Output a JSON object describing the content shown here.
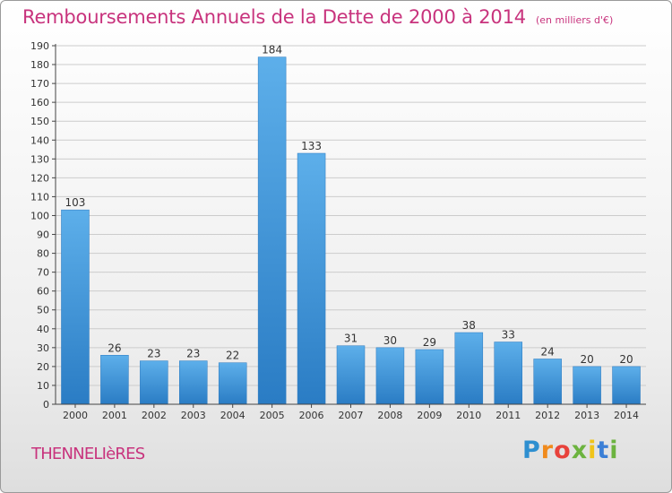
{
  "chart_data": {
    "type": "bar",
    "title": "Remboursements Annuels de la Dette de 2000 à 2014",
    "subtitle": "(en milliers d'€)",
    "categories": [
      "2000",
      "2001",
      "2002",
      "2003",
      "2004",
      "2005",
      "2006",
      "2007",
      "2008",
      "2009",
      "2010",
      "2011",
      "2012",
      "2013",
      "2014"
    ],
    "values": [
      103,
      26,
      23,
      23,
      22,
      184,
      133,
      31,
      30,
      29,
      38,
      33,
      24,
      20,
      20
    ],
    "ylim": [
      0,
      190
    ],
    "yticks": [
      0,
      10,
      20,
      30,
      40,
      50,
      60,
      70,
      80,
      90,
      100,
      110,
      120,
      130,
      140,
      150,
      160,
      170,
      180,
      190
    ],
    "grid": true,
    "bar_color": "#3b8fd6"
  },
  "commune": "THENNELIèRES",
  "logo": {
    "letters": [
      "P",
      "r",
      "o",
      "x",
      "i",
      "t",
      "i"
    ],
    "colors": [
      "#2e8fd0",
      "#f08a1c",
      "#e8423b",
      "#6cb33f",
      "#f0c419",
      "#3b7fd6",
      "#6cb33f"
    ]
  }
}
